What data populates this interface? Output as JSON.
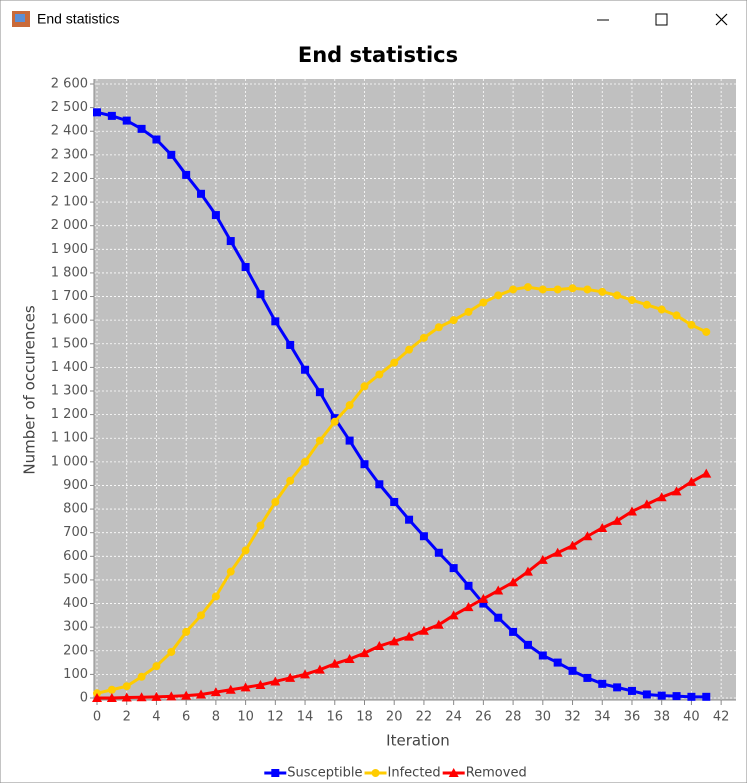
{
  "window": {
    "title": "End statistics"
  },
  "chart_data": {
    "type": "line",
    "title": "End statistics",
    "x_label": "Iteration",
    "y_label": "Number of occurences",
    "x": [
      0,
      1,
      2,
      3,
      4,
      5,
      6,
      7,
      8,
      9,
      10,
      11,
      12,
      13,
      14,
      15,
      16,
      17,
      18,
      19,
      20,
      21,
      22,
      23,
      24,
      25,
      26,
      27,
      28,
      29,
      30,
      31,
      32,
      33,
      34,
      35,
      36,
      37,
      38,
      39,
      40,
      41
    ],
    "series": [
      {
        "name": "Susceptible",
        "color": "#0000ff",
        "marker": "square",
        "values": [
          2480,
          2465,
          2445,
          2410,
          2365,
          2300,
          2215,
          2135,
          2045,
          1935,
          1825,
          1710,
          1595,
          1495,
          1390,
          1295,
          1185,
          1090,
          990,
          905,
          830,
          755,
          685,
          615,
          550,
          475,
          400,
          340,
          280,
          225,
          180,
          150,
          115,
          85,
          60,
          45,
          30,
          15,
          10,
          8,
          5,
          5
        ]
      },
      {
        "name": "Infected",
        "color": "#ffcc00",
        "marker": "circle",
        "values": [
          20,
          35,
          50,
          90,
          135,
          195,
          280,
          350,
          430,
          535,
          625,
          730,
          830,
          920,
          1000,
          1090,
          1170,
          1240,
          1320,
          1370,
          1420,
          1475,
          1525,
          1570,
          1600,
          1635,
          1675,
          1705,
          1730,
          1740,
          1730,
          1730,
          1735,
          1730,
          1720,
          1705,
          1685,
          1665,
          1645,
          1620,
          1580,
          1550
        ]
      },
      {
        "name": "Removed",
        "color": "#ff0000",
        "marker": "triangle",
        "values": [
          0,
          0,
          2,
          3,
          5,
          7,
          10,
          15,
          25,
          35,
          45,
          55,
          70,
          85,
          100,
          120,
          145,
          165,
          190,
          220,
          240,
          260,
          285,
          310,
          350,
          385,
          420,
          455,
          490,
          535,
          585,
          615,
          645,
          685,
          720,
          750,
          790,
          820,
          850,
          875,
          915,
          950
        ]
      }
    ],
    "xlim": [
      0,
      43
    ],
    "ylim": [
      0,
      2600
    ],
    "xticks": [
      0,
      2,
      4,
      6,
      8,
      10,
      12,
      14,
      16,
      18,
      20,
      22,
      24,
      26,
      28,
      30,
      32,
      34,
      36,
      38,
      40,
      42
    ],
    "yticks": [
      0,
      100,
      200,
      300,
      400,
      500,
      600,
      700,
      800,
      900,
      {
        "value": 1000,
        "label": "1 000"
      },
      {
        "value": 1100,
        "label": "1 100"
      },
      {
        "value": 1200,
        "label": "1 200"
      },
      {
        "value": 1300,
        "label": "1 300"
      },
      {
        "value": 1400,
        "label": "1 400"
      },
      {
        "value": 1500,
        "label": "1 500"
      },
      {
        "value": 1600,
        "label": "1 600"
      },
      {
        "value": 1700,
        "label": "1 700"
      },
      {
        "value": 1800,
        "label": "1 800"
      },
      {
        "value": 1900,
        "label": "1 900"
      },
      {
        "value": 2000,
        "label": "2 000"
      },
      {
        "value": 2100,
        "label": "2 100"
      },
      {
        "value": 2200,
        "label": "2 200"
      },
      {
        "value": 2300,
        "label": "2 300"
      },
      {
        "value": 2400,
        "label": "2 400"
      },
      {
        "value": 2500,
        "label": "2 500"
      },
      {
        "value": 2600,
        "label": "2 600"
      }
    ],
    "grid": true,
    "plot_background": "#c0c0c0",
    "legend": "bottom"
  }
}
